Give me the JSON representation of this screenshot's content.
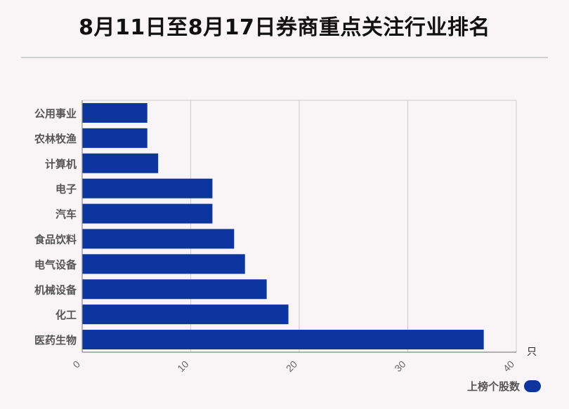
{
  "title": "8月11日至8月17日券商重点关注行业排名",
  "colors": {
    "bar": "#0c35a0",
    "grid": "#cccccc",
    "axis": "#888888",
    "label": "#555555"
  },
  "chart_data": {
    "type": "bar",
    "orientation": "horizontal",
    "categories": [
      "公用事业",
      "农林牧渔",
      "计算机",
      "电子",
      "汽车",
      "食品饮料",
      "电气设备",
      "机械设备",
      "化工",
      "医药生物"
    ],
    "series": [
      {
        "name": "上榜个股数",
        "values": [
          6,
          6,
          7,
          12,
          12,
          14,
          15,
          17,
          19,
          37
        ]
      }
    ],
    "xlim": [
      0,
      40
    ],
    "xticks": [
      0,
      10,
      20,
      30,
      40
    ],
    "xunit": "只",
    "grid": true,
    "legend": "bottom-right"
  }
}
